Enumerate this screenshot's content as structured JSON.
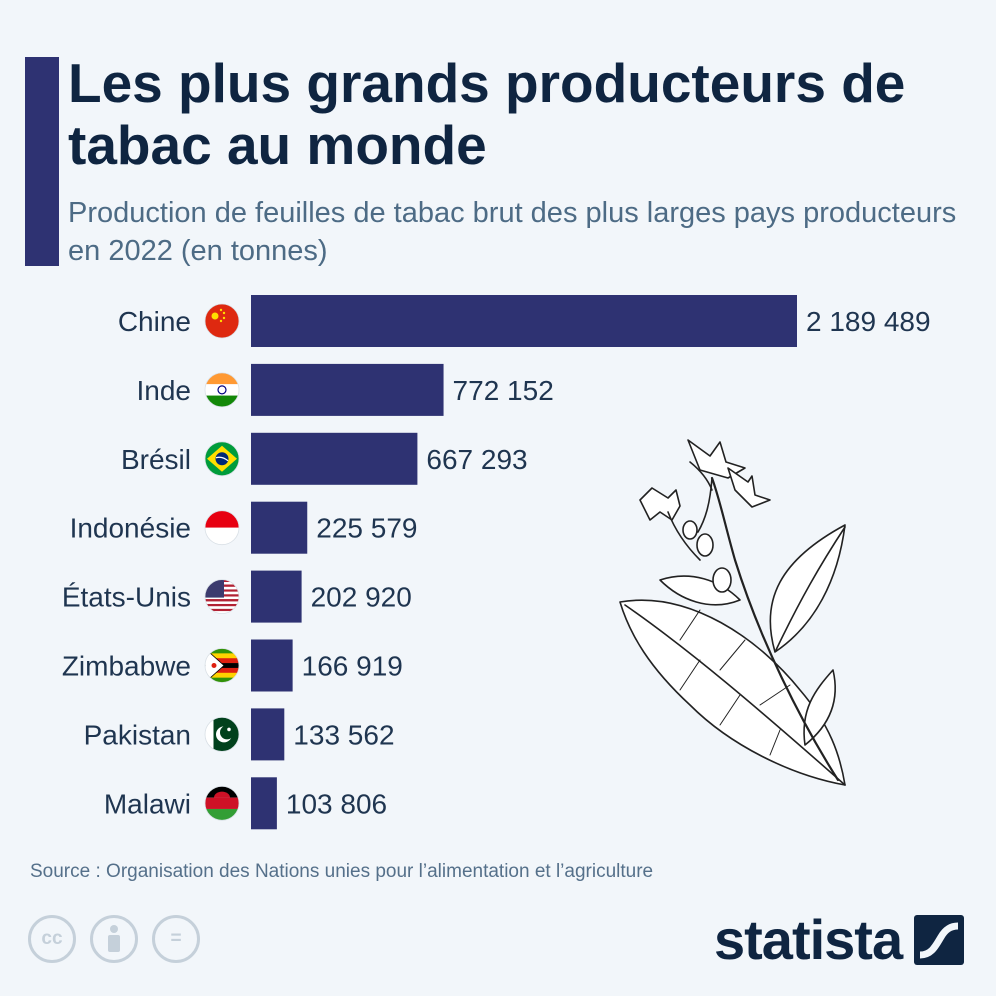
{
  "header": {
    "title": "Les plus grands producteurs de tabac au monde",
    "subtitle": "Production de feuilles de tabac brut des plus larges pays producteurs en 2022 (en tonnes)"
  },
  "chart_data": {
    "type": "bar",
    "orientation": "horizontal",
    "categories": [
      "Chine",
      "Inde",
      "Brésil",
      "Indonésie",
      "États-Unis",
      "Zimbabwe",
      "Pakistan",
      "Malawi"
    ],
    "values": [
      2189489,
      772152,
      667293,
      225579,
      202920,
      166919,
      133562,
      103806
    ],
    "value_labels": [
      "2 189 489",
      "772 152",
      "667 293",
      "225 579",
      "202 920",
      "166 919",
      "133 562",
      "103 806"
    ],
    "flag_icons": [
      "flag-china-icon",
      "flag-india-icon",
      "flag-brazil-icon",
      "flag-indonesia-icon",
      "flag-usa-icon",
      "flag-zimbabwe-icon",
      "flag-pakistan-icon",
      "flag-malawi-icon"
    ],
    "bar_color": "#2e3272",
    "grid": false,
    "legend": "none"
  },
  "footer": {
    "source": "Source : Organisation des Nations unies pour l’alimentation et l’agriculture",
    "license_icons": [
      "cc-icon",
      "attribution-icon",
      "no-derivatives-icon"
    ],
    "license_labels": [
      "cc",
      "",
      "="
    ],
    "brand": "statista"
  },
  "illustration": "tobacco-plant-icon"
}
